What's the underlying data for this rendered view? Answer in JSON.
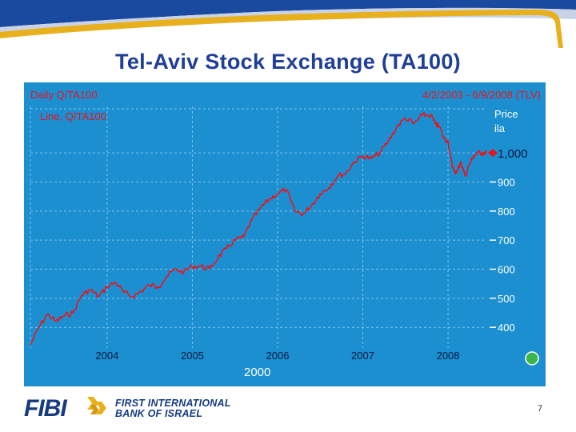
{
  "slide": {
    "title": "Tel-Aviv Stock Exchange (TA100)",
    "page_number": "7"
  },
  "footer": {
    "logo_text": "FIBI",
    "bank_name_line1": "FIRST INTERNATIONAL",
    "bank_name_line2": "BANK OF ISRAEL"
  },
  "colors": {
    "header_blue": "#1a4aa0",
    "header_light": "#c9d3e8",
    "gold": "#e8b01c",
    "chart_bg": "#1c8fd0",
    "line": "#e8141b",
    "title": "#1f3e96"
  },
  "chart_data": {
    "type": "line",
    "title": "Daily Q/TA100",
    "subtitle": "4/2/2003 - 6/9/2008 (TLV)",
    "series_label": "Line, Q/TA100",
    "ylabel": "Price\nila",
    "yticks": [
      400,
      500,
      600,
      700,
      800,
      900,
      1000
    ],
    "ytick_labels": [
      "400",
      "500",
      "600",
      "700",
      "800",
      "900",
      "1,000"
    ],
    "xtick_labels": [
      "2004",
      "2005",
      "2006",
      "2007",
      "2008"
    ],
    "xticks": [
      2004,
      2005,
      2006,
      2007,
      2008
    ],
    "extra_label": "2000",
    "xlim": [
      2003.1,
      2008.45
    ],
    "ylim": [
      340,
      1160
    ],
    "last_value": 1000,
    "x": [
      2003.1,
      2003.2,
      2003.3,
      2003.4,
      2003.5,
      2003.6,
      2003.7,
      2003.8,
      2003.9,
      2004.0,
      2004.1,
      2004.2,
      2004.3,
      2004.4,
      2004.5,
      2004.6,
      2004.7,
      2004.8,
      2004.9,
      2005.0,
      2005.1,
      2005.2,
      2005.3,
      2005.4,
      2005.5,
      2005.6,
      2005.7,
      2005.8,
      2005.9,
      2006.0,
      2006.1,
      2006.2,
      2006.3,
      2006.4,
      2006.5,
      2006.6,
      2006.7,
      2006.8,
      2006.9,
      2007.0,
      2007.1,
      2007.2,
      2007.3,
      2007.4,
      2007.5,
      2007.6,
      2007.7,
      2007.8,
      2007.85,
      2007.9,
      2007.95,
      2008.0,
      2008.05,
      2008.1,
      2008.15,
      2008.2,
      2008.25,
      2008.3,
      2008.35,
      2008.4,
      2008.45
    ],
    "values": [
      340,
      400,
      445,
      420,
      440,
      450,
      510,
      530,
      505,
      540,
      555,
      520,
      505,
      525,
      545,
      540,
      575,
      600,
      590,
      610,
      610,
      600,
      640,
      670,
      700,
      710,
      770,
      810,
      840,
      860,
      875,
      800,
      790,
      820,
      860,
      880,
      920,
      930,
      970,
      990,
      980,
      1000,
      1040,
      1090,
      1120,
      1100,
      1130,
      1130,
      1100,
      1090,
      1050,
      1040,
      950,
      930,
      970,
      920,
      960,
      990,
      1000,
      1000,
      1000
    ]
  }
}
